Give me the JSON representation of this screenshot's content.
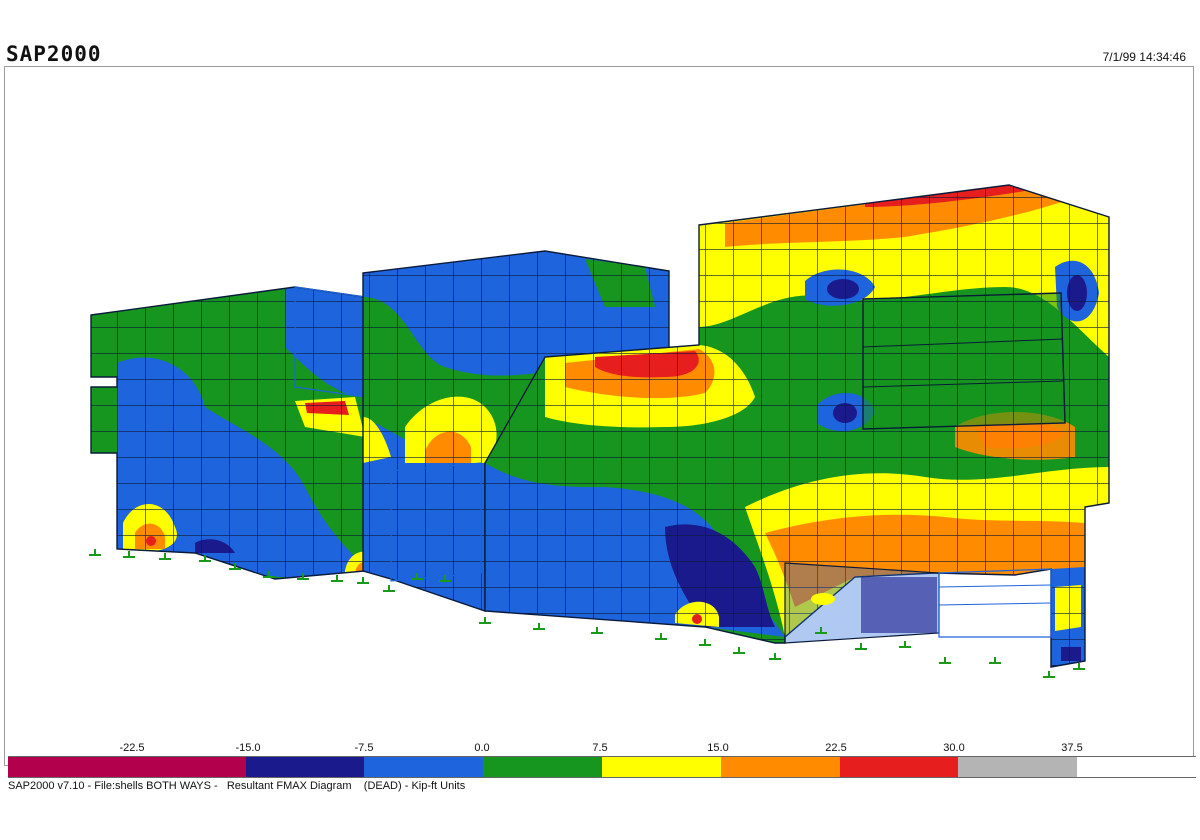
{
  "header": {
    "app_name": "SAP2000",
    "timestamp": "7/1/99 14:34:46"
  },
  "footer": {
    "caption": "SAP2000 v7.10 - File:shells BOTH WAYS -   Resultant FMAX Diagram    (DEAD) - Kip-ft Units"
  },
  "legend": {
    "tick_labels": [
      "-22.5",
      "-15.0",
      "-7.5",
      "0.0",
      "7.5",
      "15.0",
      "22.5",
      "30.0",
      "37.5"
    ],
    "swatch_colors": [
      "#b3004d",
      "#b3004d",
      "#1a1a8c",
      "#1e64dc",
      "#16961e",
      "#ffff00",
      "#ff8c00",
      "#e61e1e",
      "#b4b4b4",
      "#ffffff"
    ]
  },
  "palette": {
    "dark_blue": "#1a1a8c",
    "blue": "#1e64dc",
    "green": "#16961e",
    "yellow": "#ffff00",
    "orange": "#ff8c00",
    "red": "#e61e1e",
    "magenta": "#b3004d",
    "mesh_line": "#0a1a3a",
    "support": "#1a9a1a"
  }
}
